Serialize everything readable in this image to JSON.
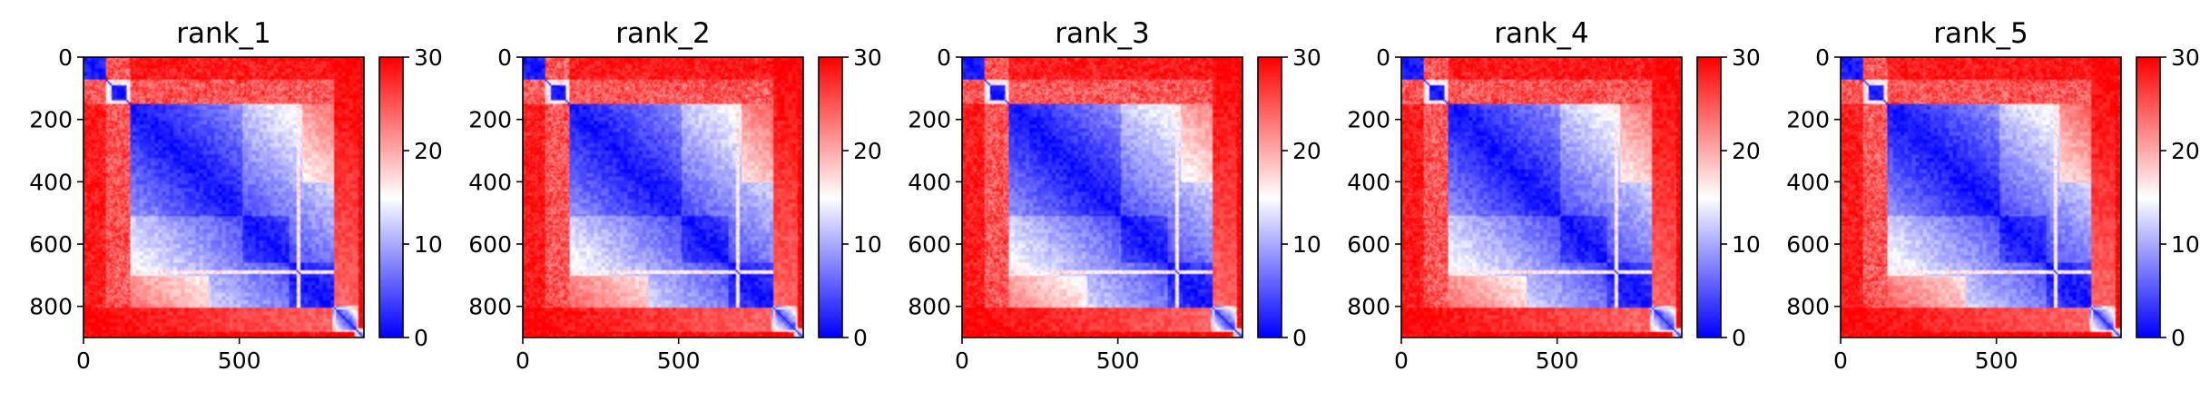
{
  "figure": {
    "colormap": {
      "low": "#0000ff",
      "mid": "#ffffff",
      "high": "#ff0000"
    }
  },
  "chart_data": [
    {
      "type": "heatmap",
      "title": "rank_1",
      "matrix_size": 900,
      "x_ticks": [
        0,
        500
      ],
      "y_ticks": [
        0,
        200,
        400,
        600,
        800
      ],
      "xlim": [
        0,
        900
      ],
      "ylim": [
        900,
        0
      ],
      "colorbar": {
        "min": 0,
        "max": 30,
        "ticks": [
          0,
          10,
          20,
          30
        ]
      },
      "blocks": [
        [
          0,
          75
        ],
        [
          75,
          150
        ],
        [
          150,
          510
        ],
        [
          510,
          660
        ],
        [
          660,
          805
        ],
        [
          805,
          880
        ],
        [
          880,
          900
        ]
      ],
      "stripes": [
        85,
        145,
        690
      ]
    },
    {
      "type": "heatmap",
      "title": "rank_2",
      "matrix_size": 900,
      "x_ticks": [
        0,
        500
      ],
      "y_ticks": [
        0,
        200,
        400,
        600,
        800
      ],
      "xlim": [
        0,
        900
      ],
      "ylim": [
        900,
        0
      ],
      "colorbar": {
        "min": 0,
        "max": 30,
        "ticks": [
          0,
          10,
          20,
          30
        ]
      },
      "blocks": [
        [
          0,
          75
        ],
        [
          75,
          150
        ],
        [
          150,
          510
        ],
        [
          510,
          660
        ],
        [
          660,
          805
        ],
        [
          805,
          880
        ],
        [
          880,
          900
        ]
      ],
      "stripes": [
        85,
        145,
        690
      ]
    },
    {
      "type": "heatmap",
      "title": "rank_3",
      "matrix_size": 900,
      "x_ticks": [
        0,
        500
      ],
      "y_ticks": [
        0,
        200,
        400,
        600,
        800
      ],
      "xlim": [
        0,
        900
      ],
      "ylim": [
        900,
        0
      ],
      "colorbar": {
        "min": 0,
        "max": 30,
        "ticks": [
          0,
          10,
          20,
          30
        ]
      },
      "blocks": [
        [
          0,
          75
        ],
        [
          75,
          150
        ],
        [
          150,
          510
        ],
        [
          510,
          660
        ],
        [
          660,
          805
        ],
        [
          805,
          880
        ],
        [
          880,
          900
        ]
      ],
      "stripes": [
        85,
        145,
        690
      ]
    },
    {
      "type": "heatmap",
      "title": "rank_4",
      "matrix_size": 900,
      "x_ticks": [
        0,
        500
      ],
      "y_ticks": [
        0,
        200,
        400,
        600,
        800
      ],
      "xlim": [
        0,
        900
      ],
      "ylim": [
        900,
        0
      ],
      "colorbar": {
        "min": 0,
        "max": 30,
        "ticks": [
          0,
          10,
          20,
          30
        ]
      },
      "blocks": [
        [
          0,
          75
        ],
        [
          75,
          150
        ],
        [
          150,
          510
        ],
        [
          510,
          660
        ],
        [
          660,
          805
        ],
        [
          805,
          880
        ],
        [
          880,
          900
        ]
      ],
      "stripes": [
        85,
        145,
        690
      ]
    },
    {
      "type": "heatmap",
      "title": "rank_5",
      "matrix_size": 900,
      "x_ticks": [
        0,
        500
      ],
      "y_ticks": [
        0,
        200,
        400,
        600,
        800
      ],
      "xlim": [
        0,
        900
      ],
      "ylim": [
        900,
        0
      ],
      "colorbar": {
        "min": 0,
        "max": 30,
        "ticks": [
          0,
          10,
          20,
          30
        ]
      },
      "blocks": [
        [
          0,
          75
        ],
        [
          75,
          150
        ],
        [
          150,
          510
        ],
        [
          510,
          660
        ],
        [
          660,
          805
        ],
        [
          805,
          880
        ],
        [
          880,
          900
        ]
      ],
      "stripes": [
        85,
        145,
        690
      ]
    }
  ]
}
